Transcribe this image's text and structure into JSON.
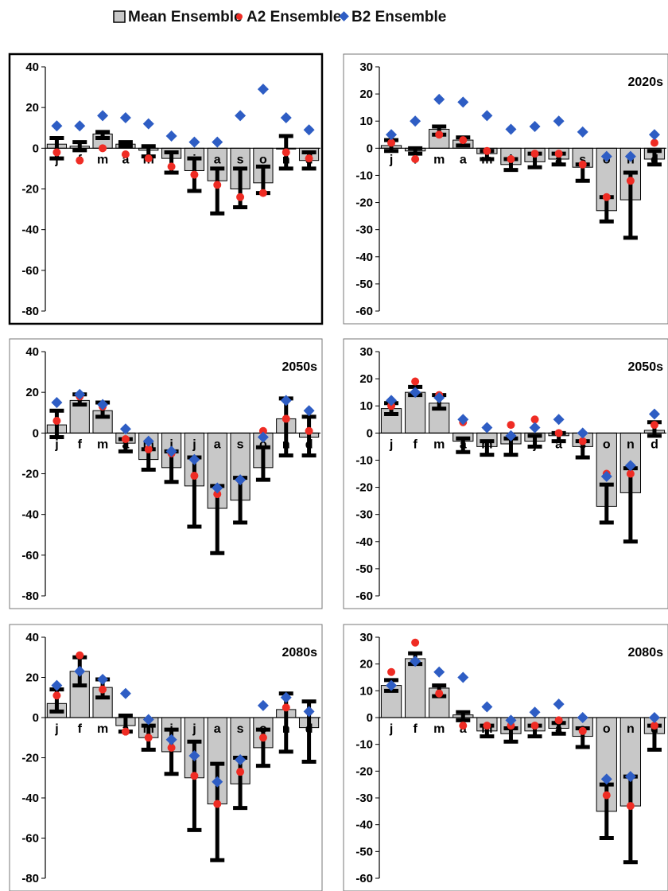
{
  "legend": {
    "mean_label": "Mean Ensemble",
    "a2_label": "A2 Ensemble",
    "b2_label": "B2 Ensemble",
    "mean_color": "#c8c8c8",
    "a2_color": "#ef2c24",
    "b2_color": "#2e5dc4",
    "error_color": "#000000"
  },
  "chart_data": [
    {
      "type": "bar",
      "title": "",
      "categories": [
        "j",
        "f",
        "m",
        "a",
        "m",
        "j",
        "j",
        "a",
        "s",
        "o",
        "n",
        "d"
      ],
      "ylim": [
        -80,
        40
      ],
      "yticks": [
        40,
        20,
        0,
        -20,
        -40,
        -60,
        -80
      ],
      "grid": false,
      "series": [
        {
          "name": "Mean Ensemble",
          "values": [
            2,
            1,
            7,
            2,
            -1,
            -5,
            -11,
            -16,
            -20,
            -17,
            0,
            -6
          ]
        },
        {
          "name": "A2 Ensemble",
          "values": [
            -2,
            -6,
            0,
            -3,
            -5,
            -9,
            -13,
            -18,
            -24,
            -22,
            -2,
            -5
          ]
        },
        {
          "name": "B2 Ensemble",
          "values": [
            11,
            11,
            16,
            15,
            12,
            6,
            3,
            3,
            16,
            29,
            15,
            9
          ]
        }
      ],
      "error_bars": {
        "upper": [
          5,
          3,
          8,
          3,
          1,
          -2,
          -5,
          -10,
          -10,
          -9,
          6,
          -2
        ],
        "lower": [
          -5,
          -1,
          5,
          1,
          -4,
          -12,
          -21,
          -32,
          -29,
          -22,
          -10,
          -10
        ]
      }
    },
    {
      "type": "bar",
      "title": "2020s",
      "categories": [
        "j",
        "f",
        "m",
        "a",
        "m",
        "j",
        "j",
        "a",
        "s",
        "o",
        "n",
        "d"
      ],
      "ylim": [
        -60,
        30
      ],
      "yticks": [
        30,
        20,
        10,
        0,
        -10,
        -20,
        -30,
        -40,
        -50,
        -60
      ],
      "grid": false,
      "series": [
        {
          "name": "Mean Ensemble",
          "values": [
            1,
            -1,
            7,
            3,
            -2,
            -6,
            -5,
            -4,
            -7,
            -23,
            -19,
            -4
          ]
        },
        {
          "name": "A2 Ensemble",
          "values": [
            2,
            -4,
            5,
            3,
            -1,
            -4,
            -2,
            -2,
            -6,
            -18,
            -12,
            2
          ]
        },
        {
          "name": "B2 Ensemble",
          "values": [
            5,
            10,
            18,
            17,
            12,
            7,
            8,
            10,
            6,
            -3,
            -3,
            5
          ]
        }
      ],
      "error_bars": {
        "upper": [
          3,
          0,
          8,
          4,
          -1,
          -4,
          -2,
          -2,
          -6,
          -18,
          -9,
          -1
        ],
        "lower": [
          -1,
          -2,
          5,
          1,
          -4,
          -8,
          -7,
          -6,
          -12,
          -27,
          -33,
          -6
        ]
      }
    },
    {
      "type": "bar",
      "title": "2050s",
      "categories": [
        "j",
        "f",
        "m",
        "a",
        "m",
        "j",
        "j",
        "a",
        "s",
        "o",
        "n",
        "d"
      ],
      "ylim": [
        -80,
        40
      ],
      "yticks": [
        40,
        20,
        0,
        -20,
        -40,
        -60,
        -80
      ],
      "grid": false,
      "series": [
        {
          "name": "Mean Ensemble",
          "values": [
            4,
            16,
            11,
            -5,
            -13,
            -17,
            -26,
            -37,
            -33,
            -17,
            7,
            -2
          ]
        },
        {
          "name": "A2 Ensemble",
          "values": [
            6,
            18,
            13,
            -3,
            -8,
            -10,
            -21,
            -30,
            -23,
            1,
            7,
            1
          ]
        },
        {
          "name": "B2 Ensemble",
          "values": [
            15,
            19,
            14,
            2,
            -4,
            -9,
            -13,
            -27,
            -23,
            -2,
            16,
            11
          ]
        }
      ],
      "error_bars": {
        "upper": [
          11,
          19,
          15,
          -3,
          -8,
          -9,
          -12,
          -26,
          -22,
          -7,
          17,
          8
        ],
        "lower": [
          -2,
          14,
          8,
          -9,
          -18,
          -24,
          -46,
          -59,
          -44,
          -23,
          -11,
          -11
        ]
      }
    },
    {
      "type": "bar",
      "title": "2050s",
      "categories": [
        "j",
        "f",
        "m",
        "a",
        "m",
        "j",
        "j",
        "a",
        "s",
        "o",
        "n",
        "d"
      ],
      "ylim": [
        -60,
        30
      ],
      "yticks": [
        30,
        20,
        10,
        0,
        -10,
        -20,
        -30,
        -40,
        -50,
        -60
      ],
      "grid": false,
      "series": [
        {
          "name": "Mean Ensemble",
          "values": [
            9,
            15,
            11,
            -3,
            -5,
            -4,
            -3,
            -1,
            -5,
            -27,
            -22,
            1
          ]
        },
        {
          "name": "A2 Ensemble",
          "values": [
            10,
            19,
            14,
            4,
            2,
            3,
            5,
            0,
            -3,
            -15,
            -15,
            3
          ]
        },
        {
          "name": "B2 Ensemble",
          "values": [
            12,
            15,
            13,
            5,
            2,
            -1,
            2,
            5,
            0,
            -16,
            -12,
            7
          ]
        }
      ],
      "error_bars": {
        "upper": [
          11,
          17,
          14,
          -2,
          -3,
          -2,
          -1,
          0,
          -3,
          -19,
          -13,
          4
        ],
        "lower": [
          7,
          14,
          9,
          -7,
          -8,
          -8,
          -5,
          -3,
          -9,
          -33,
          -40,
          -1
        ]
      }
    },
    {
      "type": "bar",
      "title": "2080s",
      "categories": [
        "j",
        "f",
        "m",
        "a",
        "m",
        "j",
        "j",
        "a",
        "s",
        "o",
        "n",
        "d"
      ],
      "ylim": [
        -80,
        40
      ],
      "yticks": [
        40,
        20,
        0,
        -20,
        -40,
        -60,
        -80
      ],
      "grid": false,
      "series": [
        {
          "name": "Mean Ensemble",
          "values": [
            7,
            23,
            15,
            -4,
            -10,
            -17,
            -30,
            -43,
            -33,
            -15,
            4,
            -5
          ]
        },
        {
          "name": "A2 Ensemble",
          "values": [
            11,
            31,
            14,
            -7,
            -10,
            -15,
            -29,
            -43,
            -27,
            -10,
            5,
            3
          ]
        },
        {
          "name": "B2 Ensemble",
          "values": [
            16,
            23,
            19,
            12,
            -1,
            -11,
            -19,
            -32,
            -21,
            6,
            10,
            3
          ]
        }
      ],
      "error_bars": {
        "upper": [
          14,
          30,
          19,
          1,
          -4,
          -6,
          -12,
          -23,
          -20,
          -6,
          12,
          8
        ],
        "lower": [
          3,
          16,
          10,
          -7,
          -16,
          -28,
          -56,
          -71,
          -45,
          -24,
          -17,
          -22
        ]
      }
    },
    {
      "type": "bar",
      "title": "2080s",
      "categories": [
        "j",
        "f",
        "m",
        "a",
        "m",
        "j",
        "j",
        "a",
        "s",
        "o",
        "n",
        "d"
      ],
      "ylim": [
        -60,
        30
      ],
      "yticks": [
        30,
        20,
        10,
        0,
        -10,
        -20,
        -30,
        -40,
        -50,
        -60
      ],
      "grid": false,
      "series": [
        {
          "name": "Mean Ensemble",
          "values": [
            12,
            22,
            11,
            1,
            -5,
            -6,
            -5,
            -4,
            -7,
            -35,
            -33,
            -6
          ]
        },
        {
          "name": "A2 Ensemble",
          "values": [
            17,
            28,
            9,
            -3,
            -3,
            -3,
            -3,
            -1,
            -5,
            -29,
            -33,
            -3
          ]
        },
        {
          "name": "B2 Ensemble",
          "values": [
            12,
            21,
            17,
            15,
            4,
            -1,
            2,
            5,
            0,
            -23,
            -22,
            0
          ]
        }
      ],
      "error_bars": {
        "upper": [
          14,
          24,
          12,
          2,
          -3,
          -4,
          -3,
          -2,
          -4,
          -25,
          -22,
          -3
        ],
        "lower": [
          10,
          20,
          8,
          -1,
          -7,
          -9,
          -7,
          -6,
          -11,
          -45,
          -54,
          -12
        ]
      }
    }
  ]
}
